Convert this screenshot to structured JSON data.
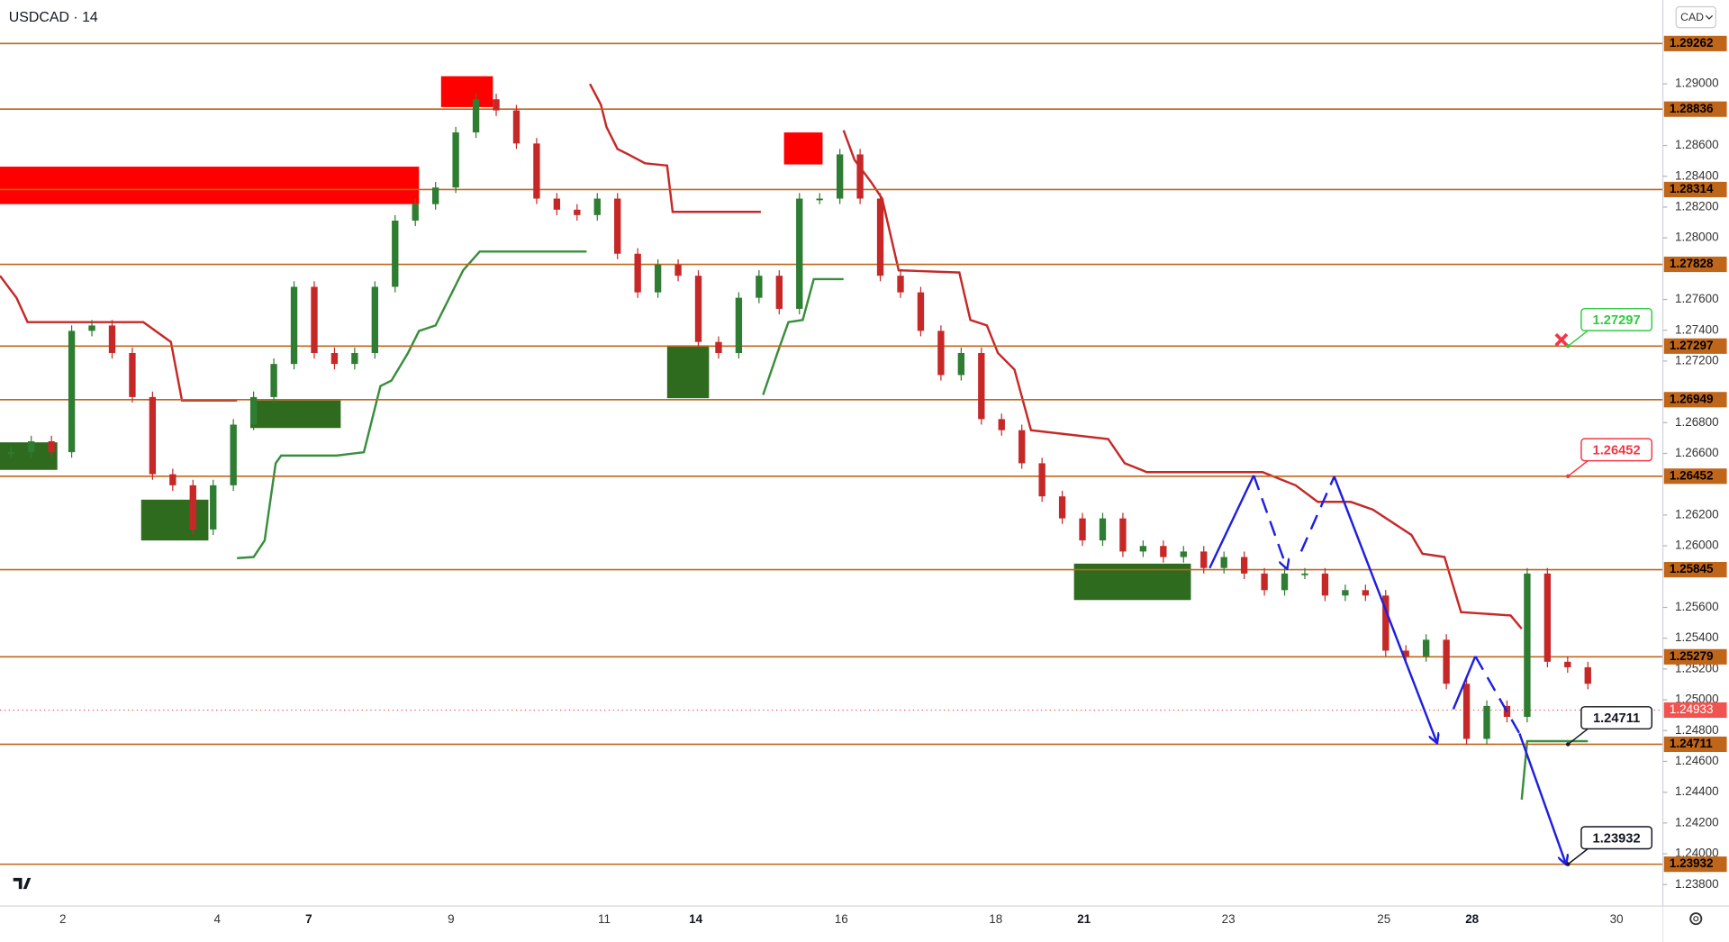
{
  "chart_data": {
    "type": "candlestick",
    "title": "USDCAD · 14",
    "currency": "CAD",
    "up_color": "#2e7d32",
    "down_color": "#c62828",
    "level_color": "#c0661a",
    "current_price_color": "#f05350",
    "ylim": [
      1.23664,
      1.29544
    ],
    "yticks": [
      {
        "value": 1.29,
        "label": "1.29000"
      },
      {
        "value": 1.286,
        "label": "1.28600"
      },
      {
        "value": 1.284,
        "label": "1.28400"
      },
      {
        "value": 1.282,
        "label": "1.28200"
      },
      {
        "value": 1.28,
        "label": "1.28000"
      },
      {
        "value": 1.276,
        "label": "1.27600"
      },
      {
        "value": 1.274,
        "label": "1.27400"
      },
      {
        "value": 1.272,
        "label": "1.27200"
      },
      {
        "value": 1.268,
        "label": "1.26800"
      },
      {
        "value": 1.266,
        "label": "1.26600"
      },
      {
        "value": 1.262,
        "label": "1.26200"
      },
      {
        "value": 1.26,
        "label": "1.26000"
      },
      {
        "value": 1.256,
        "label": "1.25600"
      },
      {
        "value": 1.254,
        "label": "1.25400"
      },
      {
        "value": 1.252,
        "label": "1.25200"
      },
      {
        "value": 1.25,
        "label": "1.25000"
      },
      {
        "value": 1.248,
        "label": "1.24800"
      },
      {
        "value": 1.246,
        "label": "1.24600"
      },
      {
        "value": 1.244,
        "label": "1.24400"
      },
      {
        "value": 1.242,
        "label": "1.24200"
      },
      {
        "value": 1.24,
        "label": "1.24000"
      },
      {
        "value": 1.238,
        "label": "1.23800"
      }
    ],
    "date_labels": [
      "2",
      "4",
      "7",
      "9",
      "11",
      "14",
      "16",
      "18",
      "21",
      "23",
      "25",
      "28",
      "30"
    ],
    "levels": [
      1.29262,
      1.28836,
      1.28314,
      1.27828,
      1.27297,
      1.26949,
      1.26452,
      1.25845,
      1.25279,
      1.24711,
      1.23932
    ],
    "current_price": 1.24933,
    "callouts": [
      {
        "value": 1.27297,
        "color": "#2ecc40"
      },
      {
        "value": 1.26452,
        "color": "#f23645"
      },
      {
        "value": 1.24711,
        "color": "#131722"
      },
      {
        "value": 1.23932,
        "color": "#131722"
      }
    ],
    "closes": [
      1.26608,
      1.26679,
      1.26608,
      1.27396,
      1.27431,
      1.27252,
      1.26966,
      1.26465,
      1.26393,
      1.26106,
      1.26393,
      1.26787,
      1.26966,
      1.27181,
      1.27682,
      1.27252,
      1.27181,
      1.27252,
      1.27682,
      1.28112,
      1.28219,
      1.28327,
      1.28685,
      1.289,
      1.28828,
      1.28613,
      1.28255,
      1.28183,
      1.28148,
      1.28255,
      1.27897,
      1.27646,
      1.27825,
      1.27754,
      1.27324,
      1.27252,
      1.27611,
      1.27754,
      1.27539,
      1.28255,
      1.28255,
      1.28542,
      1.28255,
      1.27754,
      1.27646,
      1.27396,
      1.27109,
      1.27252,
      1.26823,
      1.26751,
      1.26536,
      1.26321,
      1.26178,
      1.26035,
      1.26178,
      1.25963,
      1.25999,
      1.25927,
      1.25963,
      1.25856,
      1.25927,
      1.2582,
      1.25712,
      1.2582,
      1.2582,
      1.25677,
      1.25712,
      1.25677,
      1.25319,
      1.25283,
      1.2539,
      1.25104,
      1.24746,
      1.2496,
      1.24889,
      1.2582,
      1.25247,
      1.25211,
      1.25104
    ]
  }
}
